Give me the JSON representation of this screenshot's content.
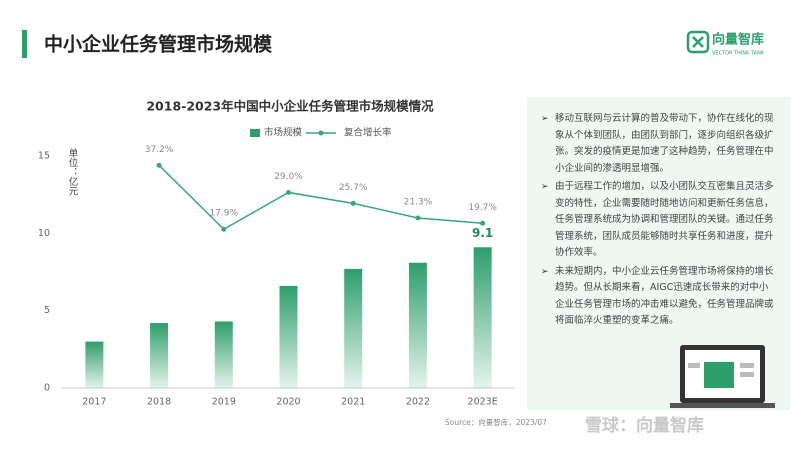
{
  "header": {
    "title": "中小企业任务管理市场规模",
    "logo": "向量智库",
    "logo_subtitle": "VECTOR THINK TANK"
  },
  "chart_data": {
    "type": "bar_line",
    "title": "2018-2023年中国中小企业任务管理市场规模情况",
    "ylabel": "单位：亿元",
    "categories": [
      "2017",
      "2018",
      "2019",
      "2020",
      "2021",
      "2022",
      "2023E"
    ],
    "series": [
      {
        "name": "市场规模",
        "color": "#2e9e6b",
        "type": "bar",
        "values": [
          3.0,
          4.2,
          4.3,
          6.6,
          7.7,
          8.1,
          9.1
        ],
        "value_labels": [
          null,
          null,
          null,
          null,
          null,
          null,
          "9.1"
        ]
      },
      {
        "name": "复合增长率",
        "color": "#3aa57a",
        "type": "line",
        "axis": "y2",
        "values": [
          null,
          37.2,
          17.9,
          29.0,
          25.7,
          21.3,
          19.7
        ],
        "value_labels": [
          null,
          "37.2%",
          "17.9%",
          "29.0%",
          "25.7%",
          "21.3%",
          "19.7%"
        ]
      }
    ],
    "ylim": [
      0,
      15
    ],
    "yticks": [
      0,
      5,
      10,
      15
    ],
    "y2lim": [
      -30,
      40
    ],
    "legend": "top",
    "source": "Source：向量智库，2023/07"
  },
  "panel": {
    "bullets": [
      "移动互联网与云计算的普及带动下，协作在线化的现象从个体到团队，由团队到部门，逐步向组织各级扩张。突发的疫情更是加速了这种趋势，任务管理在中小企业间的渗透明显增强。",
      "由于远程工作的增加，以及小团队交互密集且灵活多变的特性，企业需要随时随地访问和更新任务信息，任务管理系统成为协调和管理团队的关键。通过任务管理系统，团队成员能够随时共享任务和进度，提升协作效率。",
      "未来短期内，中小企业云任务管理市场将保持的增长趋势。但从长期来看，AIGC迅速成长带来的对中小企业任务管理市场的冲击难以避免，任务管理品牌或将面临淬火重塑的变革之痛。"
    ]
  },
  "watermark": "雪球：向量智库"
}
